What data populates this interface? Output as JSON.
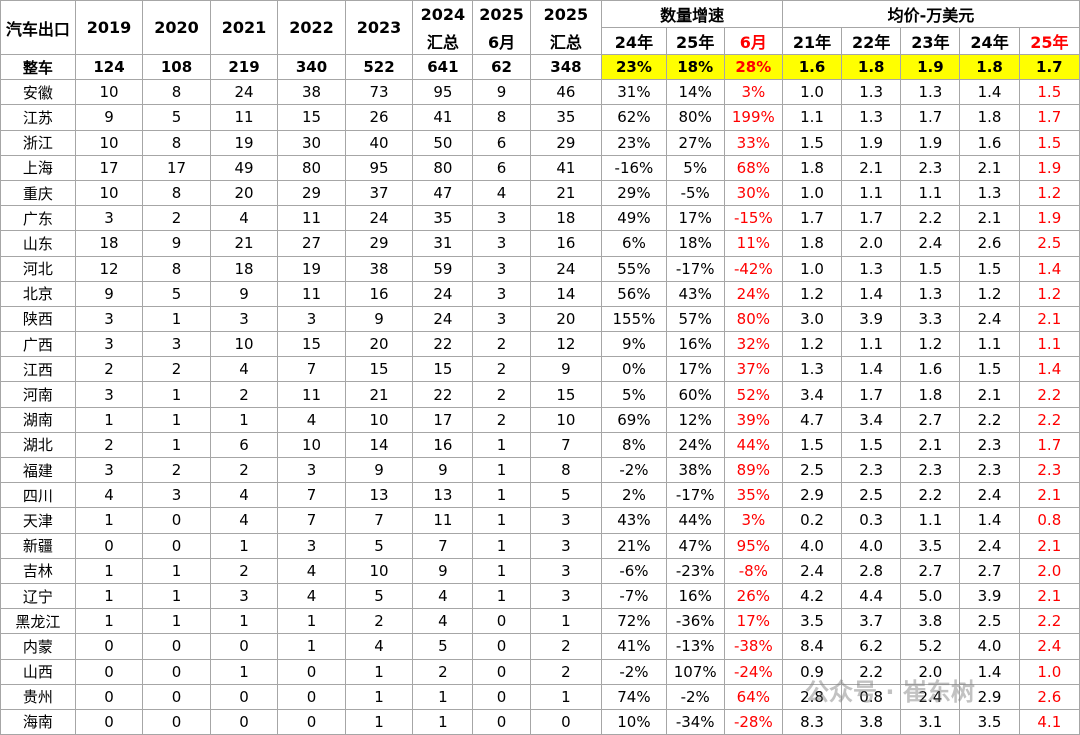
{
  "table": {
    "header_top": [
      "汽车出口",
      "2019",
      "2020",
      "2021",
      "2022",
      "2023",
      "2024",
      "2025",
      "2025",
      "数量增速",
      "均价-万美元"
    ],
    "header_sub": [
      "汇总",
      "6月",
      "汇总",
      "24年",
      "25年",
      "6月",
      "21年",
      "22年",
      "23年",
      "24年",
      "25年"
    ],
    "rows": [
      [
        "整车",
        "124",
        "108",
        "219",
        "340",
        "522",
        "641",
        "62",
        "348",
        "23%",
        "18%",
        "28%",
        "1.6",
        "1.8",
        "1.9",
        "1.8",
        "1.7"
      ],
      [
        "安徽",
        "10",
        "8",
        "24",
        "38",
        "73",
        "95",
        "9",
        "46",
        "31%",
        "14%",
        "3%",
        "1.0",
        "1.3",
        "1.3",
        "1.4",
        "1.5"
      ],
      [
        "江苏",
        "9",
        "5",
        "11",
        "15",
        "26",
        "41",
        "8",
        "35",
        "62%",
        "80%",
        "199%",
        "1.1",
        "1.3",
        "1.7",
        "1.8",
        "1.7"
      ],
      [
        "浙江",
        "10",
        "8",
        "19",
        "30",
        "40",
        "50",
        "6",
        "29",
        "23%",
        "27%",
        "33%",
        "1.5",
        "1.9",
        "1.9",
        "1.6",
        "1.5"
      ],
      [
        "上海",
        "17",
        "17",
        "49",
        "80",
        "95",
        "80",
        "6",
        "41",
        "-16%",
        "5%",
        "68%",
        "1.8",
        "2.1",
        "2.3",
        "2.1",
        "1.9"
      ],
      [
        "重庆",
        "10",
        "8",
        "20",
        "29",
        "37",
        "47",
        "4",
        "21",
        "29%",
        "-5%",
        "30%",
        "1.0",
        "1.1",
        "1.1",
        "1.3",
        "1.2"
      ],
      [
        "广东",
        "3",
        "2",
        "4",
        "11",
        "24",
        "35",
        "3",
        "18",
        "49%",
        "17%",
        "-15%",
        "1.7",
        "1.7",
        "2.2",
        "2.1",
        "1.9"
      ],
      [
        "山东",
        "18",
        "9",
        "21",
        "27",
        "29",
        "31",
        "3",
        "16",
        "6%",
        "18%",
        "11%",
        "1.8",
        "2.0",
        "2.4",
        "2.6",
        "2.5"
      ],
      [
        "河北",
        "12",
        "8",
        "18",
        "19",
        "38",
        "59",
        "3",
        "24",
        "55%",
        "-17%",
        "-42%",
        "1.0",
        "1.3",
        "1.5",
        "1.5",
        "1.4"
      ],
      [
        "北京",
        "9",
        "5",
        "9",
        "11",
        "16",
        "24",
        "3",
        "14",
        "56%",
        "43%",
        "24%",
        "1.2",
        "1.4",
        "1.3",
        "1.2",
        "1.2"
      ],
      [
        "陕西",
        "3",
        "1",
        "3",
        "3",
        "9",
        "24",
        "3",
        "20",
        "155%",
        "57%",
        "80%",
        "3.0",
        "3.9",
        "3.3",
        "2.4",
        "2.1"
      ],
      [
        "广西",
        "3",
        "3",
        "10",
        "15",
        "20",
        "22",
        "2",
        "12",
        "9%",
        "16%",
        "32%",
        "1.2",
        "1.1",
        "1.2",
        "1.1",
        "1.1"
      ],
      [
        "江西",
        "2",
        "2",
        "4",
        "7",
        "15",
        "15",
        "2",
        "9",
        "0%",
        "17%",
        "37%",
        "1.3",
        "1.4",
        "1.6",
        "1.5",
        "1.4"
      ],
      [
        "河南",
        "3",
        "1",
        "2",
        "11",
        "21",
        "22",
        "2",
        "15",
        "5%",
        "60%",
        "52%",
        "3.4",
        "1.7",
        "1.8",
        "2.1",
        "2.2"
      ],
      [
        "湖南",
        "1",
        "1",
        "1",
        "4",
        "10",
        "17",
        "2",
        "10",
        "69%",
        "12%",
        "39%",
        "4.7",
        "3.4",
        "2.7",
        "2.2",
        "2.2"
      ],
      [
        "湖北",
        "2",
        "1",
        "6",
        "10",
        "14",
        "16",
        "1",
        "7",
        "8%",
        "24%",
        "44%",
        "1.5",
        "1.5",
        "2.1",
        "2.3",
        "1.7"
      ],
      [
        "福建",
        "3",
        "2",
        "2",
        "3",
        "9",
        "9",
        "1",
        "8",
        "-2%",
        "38%",
        "89%",
        "2.5",
        "2.3",
        "2.3",
        "2.3",
        "2.3"
      ],
      [
        "四川",
        "4",
        "3",
        "4",
        "7",
        "13",
        "13",
        "1",
        "5",
        "2%",
        "-17%",
        "35%",
        "2.9",
        "2.5",
        "2.2",
        "2.4",
        "2.1"
      ],
      [
        "天津",
        "1",
        "0",
        "4",
        "7",
        "7",
        "11",
        "1",
        "3",
        "43%",
        "44%",
        "3%",
        "0.2",
        "0.3",
        "1.1",
        "1.4",
        "0.8"
      ],
      [
        "新疆",
        "0",
        "0",
        "1",
        "3",
        "5",
        "7",
        "1",
        "3",
        "21%",
        "47%",
        "95%",
        "4.0",
        "4.0",
        "3.5",
        "2.4",
        "2.1"
      ],
      [
        "吉林",
        "1",
        "1",
        "2",
        "4",
        "10",
        "9",
        "1",
        "3",
        "-6%",
        "-23%",
        "-8%",
        "2.4",
        "2.8",
        "2.7",
        "2.7",
        "2.0"
      ],
      [
        "辽宁",
        "1",
        "1",
        "3",
        "4",
        "5",
        "4",
        "1",
        "3",
        "-7%",
        "16%",
        "26%",
        "4.2",
        "4.4",
        "5.0",
        "3.9",
        "2.1"
      ],
      [
        "黑龙江",
        "1",
        "1",
        "1",
        "1",
        "2",
        "4",
        "0",
        "1",
        "72%",
        "-36%",
        "17%",
        "3.5",
        "3.7",
        "3.8",
        "2.5",
        "2.2"
      ],
      [
        "内蒙",
        "0",
        "0",
        "0",
        "1",
        "4",
        "5",
        "0",
        "2",
        "41%",
        "-13%",
        "-38%",
        "8.4",
        "6.2",
        "5.2",
        "4.0",
        "2.4"
      ],
      [
        "山西",
        "0",
        "0",
        "1",
        "0",
        "1",
        "2",
        "0",
        "2",
        "-2%",
        "107%",
        "-24%",
        "0.9",
        "2.2",
        "2.0",
        "1.4",
        "1.0"
      ],
      [
        "贵州",
        "0",
        "0",
        "0",
        "0",
        "1",
        "1",
        "0",
        "1",
        "74%",
        "-2%",
        "64%",
        "2.8",
        "0.8",
        "2.4",
        "2.9",
        "2.6"
      ],
      [
        "海南",
        "0",
        "0",
        "0",
        "0",
        "1",
        "1",
        "0",
        "0",
        "10%",
        "-34%",
        "-28%",
        "8.3",
        "3.8",
        "3.1",
        "3.5",
        "4.1"
      ]
    ],
    "watermark": "公众号 · 崔东树"
  }
}
